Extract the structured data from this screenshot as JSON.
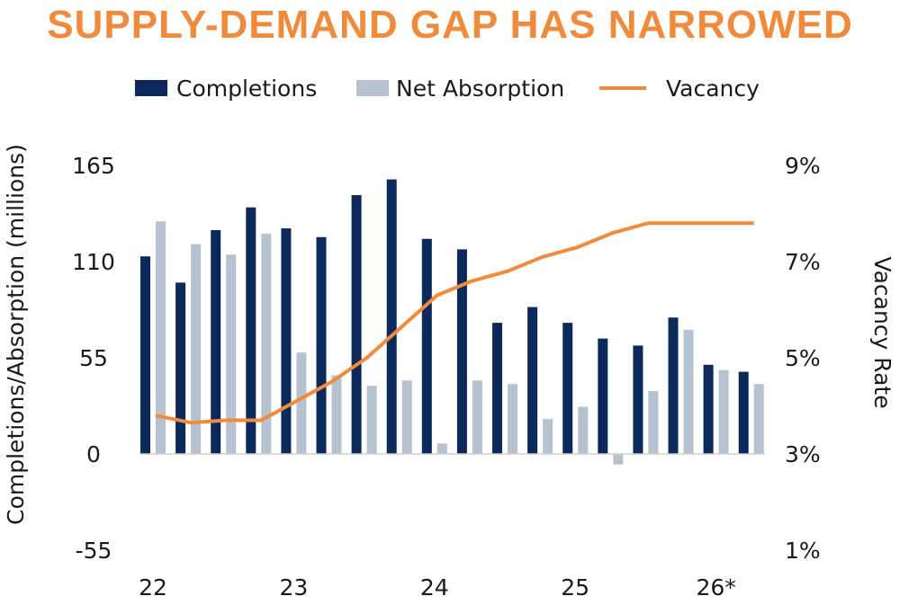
{
  "chart_data": {
    "type": "bar",
    "title": "SUPPLY-DEMAND GAP HAS NARROWED",
    "ylabel": "Completions/Absorption (millions)",
    "y2label": "Vacancy Rate",
    "ylim": [
      -55,
      165
    ],
    "yticks": [
      -55,
      0,
      55,
      110,
      165
    ],
    "y2lim": [
      1,
      9
    ],
    "y2ticks": [
      "1%",
      "3%",
      "5%",
      "7%",
      "9%"
    ],
    "xtick_labels": [
      "22",
      "23",
      "24",
      "25",
      "26*"
    ],
    "grid": false,
    "legend_position": "top",
    "categories": [
      "22Q1",
      "22Q2",
      "22Q3",
      "22Q4",
      "23Q1",
      "23Q2",
      "23Q3",
      "23Q4",
      "24Q1",
      "24Q2",
      "24Q3",
      "24Q4",
      "25Q1",
      "25Q2",
      "25Q3",
      "25Q4",
      "26Q1",
      "26Q2"
    ],
    "series": [
      {
        "name": "Completions",
        "kind": "bar",
        "color": "#0b2a5b",
        "values": [
          113,
          98,
          128,
          141,
          129,
          124,
          148,
          157,
          123,
          117,
          75,
          84,
          75,
          66,
          62,
          78,
          51,
          47
        ]
      },
      {
        "name": "Net Absorption",
        "kind": "bar",
        "color": "#b6c2d0",
        "values": [
          133,
          120,
          114,
          126,
          58,
          45,
          39,
          42,
          6,
          42,
          40,
          20,
          27,
          -6,
          36,
          71,
          48,
          40
        ]
      },
      {
        "name": "Vacancy",
        "kind": "line",
        "axis": "right",
        "color": "#f28a3c",
        "values": [
          3.8,
          3.65,
          3.7,
          3.7,
          4.1,
          4.5,
          5.0,
          5.65,
          6.3,
          6.6,
          6.8,
          7.1,
          7.3,
          7.6,
          7.8,
          7.8,
          7.8,
          7.8
        ]
      }
    ]
  }
}
